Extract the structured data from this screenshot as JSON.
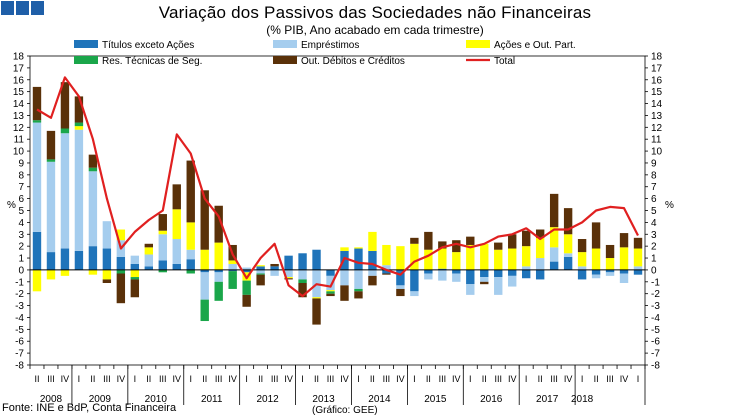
{
  "title": "Variação dos Passivos das Sociedades não Financeiras",
  "subtitle": "(% PIB, Ano acabado em cada trimestre)",
  "source": "Fonte: INE e BdP, Conta Financeira",
  "credit": "(Gráfico: GEE)",
  "logo": "gee-logo-icon",
  "colors": {
    "titulos": "#1f74ba",
    "emprestimos": "#a5cdee",
    "acoes": "#ffff00",
    "res_tecnicas": "#1aa64a",
    "out_debitos": "#5a3109",
    "total": "#e02020",
    "logo": "#1f5fa8"
  },
  "chart_data": {
    "type": "bar",
    "stacked": true,
    "title": "Variação dos Passivos das Sociedades não Financeiras",
    "subtitle": "(% PIB, Ano acabado em cada trimestre)",
    "ylabel": "%",
    "ylim": [
      -8,
      18
    ],
    "yticks": [
      -8,
      -7,
      -6,
      -5,
      -4,
      -3,
      -2,
      -1,
      0,
      1,
      2,
      3,
      4,
      5,
      6,
      7,
      8,
      9,
      10,
      11,
      12,
      13,
      14,
      15,
      16,
      17,
      18
    ],
    "quarter_labels": [
      "II",
      "III",
      "IV",
      "I",
      "II",
      "III",
      "IV",
      "I",
      "II",
      "III",
      "IV",
      "I",
      "II",
      "III",
      "IV",
      "I",
      "II",
      "III",
      "IV",
      "I",
      "II",
      "III",
      "IV",
      "I",
      "II",
      "III",
      "IV",
      "I",
      "II",
      "III",
      "IV",
      "I",
      "II",
      "III",
      "IV",
      "I",
      "II",
      "III",
      "IV",
      "I",
      "II",
      "III",
      "IV",
      "I"
    ],
    "years": [
      {
        "label": "2008",
        "start": 0,
        "count": 3
      },
      {
        "label": "2009",
        "start": 3,
        "count": 4
      },
      {
        "label": "2010",
        "start": 7,
        "count": 4
      },
      {
        "label": "2011",
        "start": 11,
        "count": 4
      },
      {
        "label": "2012",
        "start": 15,
        "count": 4
      },
      {
        "label": "2013",
        "start": 19,
        "count": 4
      },
      {
        "label": "2014",
        "start": 23,
        "count": 4
      },
      {
        "label": "2015",
        "start": 27,
        "count": 4
      },
      {
        "label": "2016",
        "start": 31,
        "count": 4
      },
      {
        "label": "2017",
        "start": 35,
        "count": 4
      },
      {
        "label": "2018",
        "start": 39,
        "count": 1
      }
    ],
    "series": [
      {
        "key": "titulos",
        "name": "Títulos exceto Ações",
        "values": [
          3.2,
          1.5,
          1.8,
          1.6,
          2.0,
          1.8,
          1.1,
          0.5,
          0.3,
          0.8,
          0.5,
          0.9,
          -0.2,
          -0.2,
          -0.1,
          -0.2,
          0.3,
          0.3,
          1.2,
          1.4,
          1.7,
          -0.5,
          1.6,
          1.8,
          1.6,
          -0.3,
          -1.3,
          -1.8,
          -0.3,
          0.1,
          -0.3,
          -1.2,
          -0.6,
          -0.6,
          -0.5,
          -0.7,
          -0.8,
          0.7,
          1.1,
          -0.8,
          -0.4,
          -0.2,
          -0.3,
          -0.4
        ]
      },
      {
        "key": "emprestimos",
        "name": "Empréstimos",
        "values": [
          9.2,
          7.6,
          9.7,
          10.2,
          6.3,
          2.3,
          1.4,
          0.7,
          1.0,
          2.2,
          2.1,
          0.8,
          -2.3,
          -0.8,
          0.5,
          0.2,
          -0.3,
          -0.5,
          -0.6,
          -0.8,
          -2.3,
          -1.2,
          -1.3,
          -1.6,
          -0.5,
          0.4,
          -0.3,
          -0.4,
          -0.5,
          -0.9,
          -0.7,
          -0.9,
          -0.4,
          -1.5,
          -0.9,
          0.3,
          1.0,
          1.2,
          0.3,
          0.3,
          -0.3,
          -0.3,
          -0.8,
          0.3
        ]
      },
      {
        "key": "acoes",
        "name": "Ações e Out. Part.",
        "values": [
          -1.8,
          -0.8,
          -0.5,
          0.3,
          -0.4,
          -0.8,
          0.9,
          -0.6,
          0.6,
          0.3,
          2.5,
          2.3,
          1.7,
          2.3,
          0.3,
          -0.7,
          0.1,
          0.0,
          -0.1,
          0.0,
          -0.1,
          -0.1,
          0.3,
          0.1,
          1.6,
          1.7,
          2.0,
          2.2,
          1.7,
          1.7,
          1.5,
          2.1,
          2.2,
          1.7,
          1.8,
          1.7,
          1.7,
          1.7,
          1.6,
          1.2,
          1.8,
          1.0,
          1.9,
          1.5
        ]
      },
      {
        "key": "res_tecnicas",
        "name": "Res. Técnicas de Seg.",
        "values": [
          0.2,
          0.2,
          0.4,
          0.3,
          0.3,
          0.0,
          -0.3,
          -0.2,
          0.0,
          -0.2,
          0.0,
          -0.3,
          -1.8,
          -1.6,
          -1.5,
          -1.2,
          -0.1,
          0.0,
          0.0,
          -0.3,
          0.0,
          -0.2,
          0.0,
          -0.2,
          0.0,
          0.0,
          0.0,
          0.0,
          0.0,
          0.0,
          0.0,
          0.0,
          0.0,
          0.0,
          0.0,
          0.0,
          0.0,
          0.0,
          0.0,
          0.0,
          0.0,
          0.0,
          0.0,
          0.0
        ]
      },
      {
        "key": "out_debitos",
        "name": "Out. Débitos e Créditos",
        "values": [
          2.8,
          2.4,
          3.9,
          2.2,
          1.1,
          -0.3,
          -2.5,
          -1.5,
          0.3,
          1.4,
          2.1,
          5.2,
          5.0,
          3.1,
          1.3,
          -1.0,
          -0.9,
          0.2,
          -0.1,
          -1.2,
          -2.2,
          -0.2,
          -1.3,
          -0.6,
          -0.8,
          -0.1,
          -0.6,
          0.5,
          1.5,
          0.6,
          1.0,
          0.7,
          -0.2,
          0.6,
          1.2,
          1.3,
          0.7,
          2.8,
          2.2,
          1.1,
          2.2,
          1.1,
          1.2,
          0.9
        ]
      },
      {
        "key": "total",
        "name": "Total",
        "type": "line",
        "values": [
          13.5,
          12.8,
          16.2,
          14.6,
          11.0,
          6.0,
          1.8,
          3.2,
          4.2,
          5.0,
          11.4,
          9.8,
          6.0,
          4.5,
          1.3,
          -0.7,
          1.0,
          2.2,
          -1.3,
          -2.2,
          -1.2,
          -1.4,
          1.0,
          0.6,
          0.5,
          0.0,
          -0.4,
          0.7,
          1.2,
          1.9,
          2.2,
          1.9,
          2.2,
          2.8,
          3.0,
          3.5,
          2.6,
          3.4,
          3.4,
          4.0,
          5.0,
          5.3,
          5.2,
          2.9
        ]
      }
    ],
    "legend": [
      {
        "key": "titulos",
        "label": "Títulos exceto Ações",
        "kind": "box"
      },
      {
        "key": "emprestimos",
        "label": "Empréstimos",
        "kind": "box"
      },
      {
        "key": "acoes",
        "label": "Ações e Out. Part.",
        "kind": "box"
      },
      {
        "key": "res_tecnicas",
        "label": "Res. Técnicas de Seg.",
        "kind": "box"
      },
      {
        "key": "out_debitos",
        "label": "Out. Débitos e Créditos",
        "kind": "box"
      },
      {
        "key": "total",
        "label": "Total",
        "kind": "line"
      }
    ],
    "legend_position": "top"
  }
}
